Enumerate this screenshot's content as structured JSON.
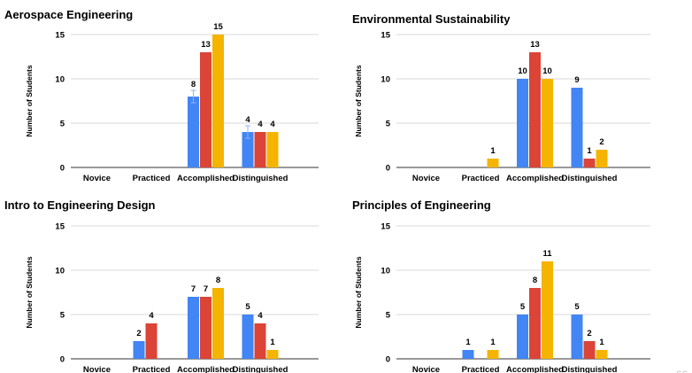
{
  "page_number": "66",
  "colors": {
    "series": [
      "#4285f4",
      "#db4437",
      "#f4b400"
    ]
  },
  "chart_data": [
    {
      "type": "bar",
      "title": "Aerospace Engineering",
      "ylabel": "Number of Students",
      "ylim": [
        0,
        15
      ],
      "yticks": [
        "0",
        "5",
        "10",
        "15"
      ],
      "categories": [
        "Novice",
        "Practiced",
        "Accomplished",
        "Distinguished"
      ],
      "series": [
        {
          "values": [
            0,
            0,
            8,
            4
          ]
        },
        {
          "values": [
            0,
            0,
            13,
            4
          ]
        },
        {
          "values": [
            0,
            0,
            15,
            4
          ]
        }
      ],
      "error_bars": {
        "series_index": 0,
        "categories": [
          "Accomplished",
          "Distinguished"
        ]
      },
      "grid": true
    },
    {
      "type": "bar",
      "title": "Environmental Sustainability",
      "ylabel": "Number of Students",
      "ylim": [
        0,
        15
      ],
      "yticks": [
        "0",
        "5",
        "10",
        "15"
      ],
      "categories": [
        "Novice",
        "Practiced",
        "Accomplished",
        "Distinguished"
      ],
      "series": [
        {
          "values": [
            0,
            0,
            10,
            9
          ]
        },
        {
          "values": [
            0,
            0,
            13,
            1
          ]
        },
        {
          "values": [
            0,
            1,
            10,
            2
          ]
        }
      ],
      "grid": true
    },
    {
      "type": "bar",
      "title": "Intro to Engineering Design",
      "ylabel": "Number of Students",
      "ylim": [
        0,
        15
      ],
      "yticks": [
        "0",
        "5",
        "10",
        "15"
      ],
      "categories": [
        "Novice",
        "Practiced",
        "Accomplished",
        "Distinguished"
      ],
      "series": [
        {
          "values": [
            0,
            2,
            7,
            5
          ]
        },
        {
          "values": [
            0,
            4,
            7,
            4
          ]
        },
        {
          "values": [
            0,
            0,
            8,
            1
          ]
        }
      ],
      "grid": true
    },
    {
      "type": "bar",
      "title": "Principles of Engineering",
      "ylabel": "Number of Students",
      "ylim": [
        0,
        15
      ],
      "yticks": [
        "0",
        "5",
        "10",
        "15"
      ],
      "categories": [
        "Novice",
        "Practiced",
        "Accomplished",
        "Distinguished"
      ],
      "series": [
        {
          "values": [
            0,
            1,
            5,
            5
          ]
        },
        {
          "values": [
            0,
            0,
            8,
            2
          ]
        },
        {
          "values": [
            0,
            1,
            11,
            1
          ]
        }
      ],
      "grid": true
    }
  ]
}
